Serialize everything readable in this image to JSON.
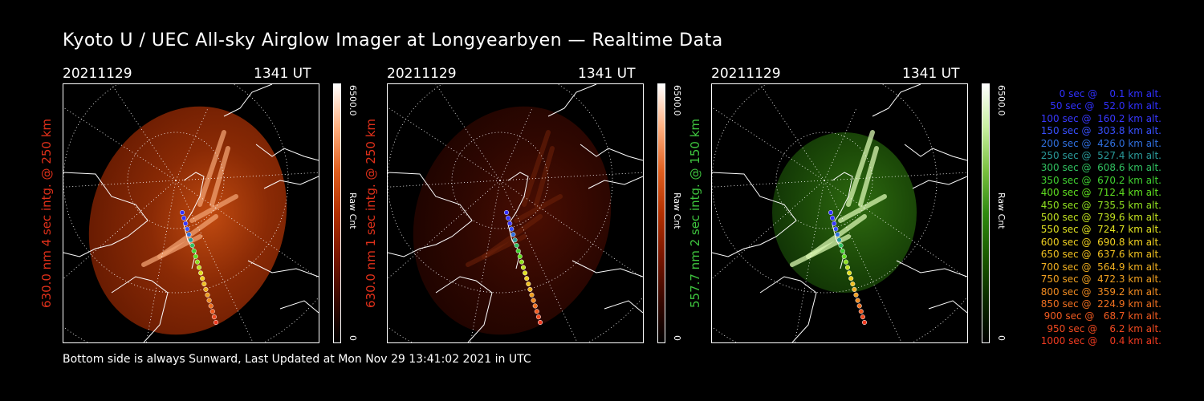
{
  "title": "Kyoto U / UEC All-sky Airglow Imager at Longyearbyen — Realtime Data",
  "footer": "Bottom side is always Sunward, Last Updated at Mon Nov 29 13:41:02 2021 in UTC",
  "panels": [
    {
      "date": "20211129",
      "time": "1341 UT",
      "ylabel": "630.0 nm 4 sec intg. @ 250 km",
      "label_color": "#e0301a",
      "colorbar_max": "6500.0",
      "colorbar_min": "0",
      "colorbar_unit": "Raw Cnt",
      "colormap": [
        "#000000",
        "#3a0800",
        "#7a1600",
        "#b33000",
        "#e06020",
        "#ffb080",
        "#ffffff"
      ],
      "image_tone": "red-bright"
    },
    {
      "date": "20211129",
      "time": "1341 UT",
      "ylabel": "630.0 nm 1 sec intg. @ 250 km",
      "label_color": "#e0301a",
      "colorbar_max": "6500.0",
      "colorbar_min": "0",
      "colorbar_unit": "Raw Cnt",
      "colormap": [
        "#000000",
        "#3a0800",
        "#7a1600",
        "#b33000",
        "#e06020",
        "#ffb080",
        "#ffffff"
      ],
      "image_tone": "red-dim"
    },
    {
      "date": "20211129",
      "time": "1341 UT",
      "ylabel": "557.7 nm 2 sec intg. @ 150 km",
      "label_color": "#3ec43e",
      "colorbar_max": "6500.0",
      "colorbar_min": "0",
      "colorbar_unit": "Raw Cnt",
      "colormap": [
        "#000000",
        "#0a2a00",
        "#1a5a00",
        "#2f8a10",
        "#7ac040",
        "#c8f0a0",
        "#ffffff"
      ],
      "image_tone": "green"
    }
  ],
  "legend": [
    {
      "text": "   0 sec @    0.1 km alt.",
      "color": "#3030ff"
    },
    {
      "text": "  50 sec @   52.0 km alt.",
      "color": "#3030ff"
    },
    {
      "text": " 100 sec @  160.2 km alt.",
      "color": "#3838ff"
    },
    {
      "text": " 150 sec @  303.8 km alt.",
      "color": "#3850ff"
    },
    {
      "text": " 200 sec @  426.0 km alt.",
      "color": "#3070e0"
    },
    {
      "text": " 250 sec @  527.4 km alt.",
      "color": "#2a9a9a"
    },
    {
      "text": " 300 sec @  608.6 km alt.",
      "color": "#30c060"
    },
    {
      "text": " 350 sec @  670.2 km alt.",
      "color": "#40d030"
    },
    {
      "text": " 400 sec @  712.4 km alt.",
      "color": "#60e020"
    },
    {
      "text": " 450 sec @  735.5 km alt.",
      "color": "#90e020"
    },
    {
      "text": " 500 sec @  739.6 km alt.",
      "color": "#c0e020"
    },
    {
      "text": " 550 sec @  724.7 km alt.",
      "color": "#e0e020"
    },
    {
      "text": " 600 sec @  690.8 km alt.",
      "color": "#f0d020"
    },
    {
      "text": " 650 sec @  637.6 km alt.",
      "color": "#f0c020"
    },
    {
      "text": " 700 sec @  564.9 km alt.",
      "color": "#f0b020"
    },
    {
      "text": " 750 sec @  472.3 km alt.",
      "color": "#f0a020"
    },
    {
      "text": " 800 sec @  359.2 km alt.",
      "color": "#f08a20"
    },
    {
      "text": " 850 sec @  224.9 km alt.",
      "color": "#f07020"
    },
    {
      "text": " 900 sec @   68.7 km alt.",
      "color": "#f05a20"
    },
    {
      "text": " 950 sec @    6.2 km alt.",
      "color": "#f04a20"
    },
    {
      "text": "1000 sec @    0.4 km alt.",
      "color": "#f03a20"
    }
  ]
}
